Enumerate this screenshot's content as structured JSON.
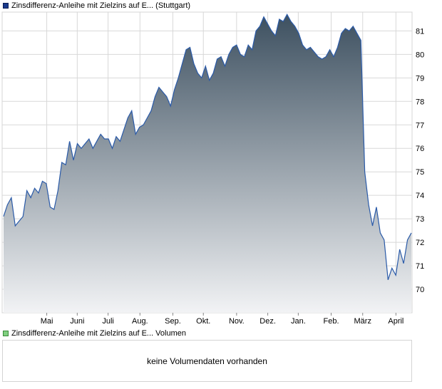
{
  "price_legend": {
    "label": "Zinsdifferenz-Anleihe mit Zielzins auf E... (Stuttgart)"
  },
  "volume_legend": {
    "label": "Zinsdifferenz-Anleihe mit Zielzins auf E... Volumen"
  },
  "volume_panel": {
    "message": "keine Volumendaten vorhanden"
  },
  "colors": {
    "line": "#2a5aa8",
    "area_top": "#3d5060",
    "area_bottom": "#f2f3f5",
    "grid": "#d8d8d8"
  },
  "chart_data": {
    "type": "area",
    "ylim": [
      69,
      81.8
    ],
    "y_ticks": [
      70,
      71,
      72,
      73,
      74,
      75,
      76,
      77,
      78,
      79,
      80,
      81
    ],
    "x_ticks": [
      {
        "label": "Mai",
        "t": 12.6
      },
      {
        "label": "Juni",
        "t": 21.5
      },
      {
        "label": "Juli",
        "t": 30.5
      },
      {
        "label": "Aug.",
        "t": 39.8
      },
      {
        "label": "Sep.",
        "t": 49.4
      },
      {
        "label": "Okt.",
        "t": 58.3
      },
      {
        "label": "Nov.",
        "t": 68.0
      },
      {
        "label": "Dez.",
        "t": 77.1
      },
      {
        "label": "Jan.",
        "t": 86.0
      },
      {
        "label": "Feb.",
        "t": 95.6
      },
      {
        "label": "März",
        "t": 104.8
      },
      {
        "label": "April",
        "t": 114.5
      }
    ],
    "x_range": [
      0,
      119
    ],
    "values": [
      73.1,
      73.6,
      73.9,
      72.7,
      72.9,
      73.1,
      74.2,
      73.9,
      74.3,
      74.1,
      74.6,
      74.5,
      73.5,
      73.4,
      74.2,
      75.4,
      75.3,
      76.3,
      75.5,
      76.2,
      76.0,
      76.2,
      76.4,
      76.0,
      76.3,
      76.6,
      76.4,
      76.4,
      76.0,
      76.5,
      76.3,
      76.8,
      77.3,
      77.6,
      76.6,
      76.9,
      77.0,
      77.3,
      77.6,
      78.2,
      78.6,
      78.4,
      78.2,
      77.8,
      78.5,
      79.0,
      79.6,
      80.2,
      80.3,
      79.6,
      79.2,
      79.0,
      79.5,
      78.9,
      79.2,
      79.8,
      79.9,
      79.5,
      80.0,
      80.3,
      80.4,
      80.0,
      79.9,
      80.4,
      80.2,
      81.0,
      81.2,
      81.6,
      81.3,
      81.0,
      80.8,
      81.5,
      81.4,
      81.7,
      81.4,
      81.2,
      80.9,
      80.4,
      80.2,
      80.3,
      80.1,
      79.9,
      79.8,
      79.9,
      80.2,
      79.9,
      80.3,
      80.9,
      81.1,
      81.0,
      81.2,
      80.9,
      80.6,
      75.0,
      73.6,
      72.7,
      73.5,
      72.4,
      72.1,
      70.4,
      70.9,
      70.6,
      71.7,
      71.1,
      72.1,
      72.4
    ]
  }
}
